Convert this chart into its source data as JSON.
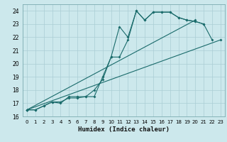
{
  "xlabel": "Humidex (Indice chaleur)",
  "bg_color": "#cce8ec",
  "grid_color": "#aacdd4",
  "line_color": "#1a6b6b",
  "xlim": [
    -0.5,
    23.5
  ],
  "ylim": [
    16,
    24.5
  ],
  "yticks": [
    16,
    17,
    18,
    19,
    20,
    21,
    22,
    23,
    24
  ],
  "xticks": [
    0,
    1,
    2,
    3,
    4,
    5,
    6,
    7,
    8,
    9,
    10,
    11,
    12,
    13,
    14,
    15,
    16,
    17,
    18,
    19,
    20,
    21,
    22,
    23
  ],
  "series": [
    {
      "x": [
        0,
        1,
        2,
        3,
        4,
        5,
        6,
        7,
        8,
        9,
        10,
        11,
        12,
        13,
        14,
        15,
        16,
        17,
        18,
        19,
        20,
        21,
        22,
        23
      ],
      "y": [
        16.5,
        16.5,
        16.8,
        17.1,
        17.0,
        17.5,
        17.5,
        17.5,
        18.0,
        18.8,
        20.5,
        22.8,
        22.0,
        24.0,
        23.3,
        23.9,
        23.9,
        23.9,
        23.5,
        23.3,
        23.2,
        23.0,
        21.8,
        null
      ]
    },
    {
      "x": [
        0,
        1,
        2,
        3,
        4,
        5,
        6,
        7,
        8,
        9,
        10,
        11,
        12,
        13,
        14,
        15,
        16,
        17,
        18,
        19,
        20,
        21
      ],
      "y": [
        16.5,
        16.5,
        16.8,
        17.1,
        17.1,
        17.4,
        17.4,
        17.5,
        17.5,
        19.0,
        20.5,
        20.5,
        21.8,
        24.0,
        23.3,
        23.9,
        23.9,
        23.9,
        23.5,
        23.3,
        23.2,
        23.0
      ]
    },
    {
      "x": [
        0,
        23
      ],
      "y": [
        16.5,
        21.8
      ]
    },
    {
      "x": [
        0,
        20
      ],
      "y": [
        16.5,
        23.3
      ]
    }
  ]
}
